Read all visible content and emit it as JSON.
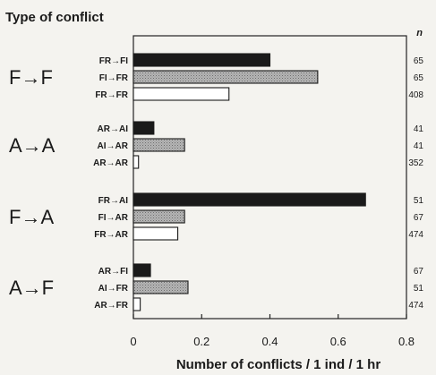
{
  "chart_data": {
    "type": "bar",
    "orientation": "horizontal",
    "title": "Type of conflict",
    "n_header": "n",
    "xlabel": "Number of conflicts / 1 ind / 1 hr",
    "xlim": [
      0,
      0.8
    ],
    "xticks": [
      "0",
      "0.2",
      "0.4",
      "0.6",
      "0.8"
    ],
    "fills": {
      "black": "#1a1a1a",
      "hatched": "#a8a8a8",
      "white": "#ffffff"
    },
    "groups": [
      {
        "label": "F→F",
        "bars": [
          {
            "label": "FR→FI",
            "value": 0.4,
            "n": "65",
            "fill": "black"
          },
          {
            "label": "FI→FR",
            "value": 0.54,
            "n": "65",
            "fill": "hatched"
          },
          {
            "label": "FR→FR",
            "value": 0.28,
            "n": "408",
            "fill": "white"
          }
        ]
      },
      {
        "label": "A→A",
        "bars": [
          {
            "label": "AR→AI",
            "value": 0.06,
            "n": "41",
            "fill": "black"
          },
          {
            "label": "AI→AR",
            "value": 0.15,
            "n": "41",
            "fill": "hatched"
          },
          {
            "label": "AR→AR",
            "value": 0.015,
            "n": "352",
            "fill": "white"
          }
        ]
      },
      {
        "label": "F→A",
        "bars": [
          {
            "label": "FR→AI",
            "value": 0.68,
            "n": "51",
            "fill": "black"
          },
          {
            "label": "FI→AR",
            "value": 0.15,
            "n": "67",
            "fill": "hatched"
          },
          {
            "label": "FR→AR",
            "value": 0.13,
            "n": "474",
            "fill": "white"
          }
        ]
      },
      {
        "label": "A→F",
        "bars": [
          {
            "label": "AR→FI",
            "value": 0.05,
            "n": "67",
            "fill": "black"
          },
          {
            "label": "AI→FR",
            "value": 0.16,
            "n": "51",
            "fill": "hatched"
          },
          {
            "label": "AR→FR",
            "value": 0.02,
            "n": "474",
            "fill": "white"
          }
        ]
      }
    ]
  }
}
